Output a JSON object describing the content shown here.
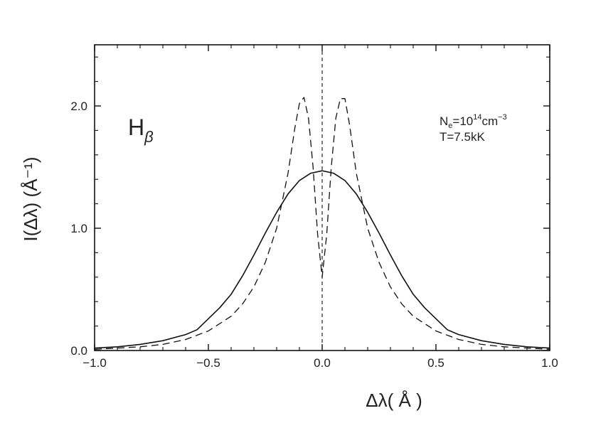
{
  "chart_data": {
    "type": "line",
    "xlabel": "Δλ( Å )",
    "ylabel": "I(Δλ)  (Å⁻¹)",
    "xlim": [
      -1.0,
      1.0
    ],
    "ylim": [
      0.0,
      2.5
    ],
    "xticks": [
      -1.0,
      -0.5,
      0.0,
      0.5,
      1.0
    ],
    "xtick_labels": [
      "−1.0",
      "−0.5",
      "0.0",
      "0.5",
      "1.0"
    ],
    "yticks": [
      0.0,
      1.0,
      2.0
    ],
    "ytick_labels": [
      "0.0",
      "1.0",
      "2.0"
    ],
    "grid": false,
    "reference_line_x": 0.0,
    "annotations": {
      "line_label_main": "H",
      "line_label_sub": "β",
      "density_base": "N",
      "density_sub": "e",
      "density_eq": "=10",
      "density_exp": "14",
      "density_unit": "cm",
      "density_unit_exp": "−3",
      "temperature": "T=7.5kK"
    },
    "series": [
      {
        "style": "solid",
        "x": [
          -1.0,
          -0.9,
          -0.8,
          -0.7,
          -0.6,
          -0.55,
          -0.5,
          -0.45,
          -0.4,
          -0.35,
          -0.3,
          -0.25,
          -0.2,
          -0.15,
          -0.1,
          -0.05,
          0.0,
          0.05,
          0.1,
          0.15,
          0.2,
          0.25,
          0.3,
          0.35,
          0.4,
          0.45,
          0.5,
          0.55,
          0.6,
          0.7,
          0.8,
          0.9,
          1.0
        ],
        "values": [
          0.02,
          0.03,
          0.05,
          0.08,
          0.13,
          0.17,
          0.26,
          0.35,
          0.46,
          0.61,
          0.78,
          0.96,
          1.13,
          1.28,
          1.39,
          1.45,
          1.47,
          1.45,
          1.39,
          1.28,
          1.13,
          0.96,
          0.78,
          0.61,
          0.46,
          0.35,
          0.26,
          0.17,
          0.13,
          0.08,
          0.05,
          0.03,
          0.02
        ]
      },
      {
        "style": "dashed",
        "x": [
          -1.0,
          -0.9,
          -0.8,
          -0.7,
          -0.6,
          -0.5,
          -0.4,
          -0.35,
          -0.3,
          -0.25,
          -0.2,
          -0.15,
          -0.12,
          -0.1,
          -0.08,
          -0.06,
          -0.04,
          -0.02,
          0.0,
          0.02,
          0.04,
          0.06,
          0.08,
          0.1,
          0.12,
          0.15,
          0.2,
          0.25,
          0.3,
          0.35,
          0.4,
          0.5,
          0.6,
          0.7,
          0.8,
          0.9,
          1.0
        ],
        "values": [
          0.01,
          0.02,
          0.03,
          0.05,
          0.09,
          0.16,
          0.28,
          0.38,
          0.52,
          0.72,
          1.0,
          1.45,
          1.82,
          2.02,
          2.07,
          1.9,
          1.5,
          0.95,
          0.6,
          0.95,
          1.5,
          1.9,
          2.06,
          2.06,
          1.85,
          1.45,
          1.0,
          0.72,
          0.52,
          0.38,
          0.28,
          0.16,
          0.09,
          0.05,
          0.03,
          0.02,
          0.01
        ]
      }
    ]
  }
}
